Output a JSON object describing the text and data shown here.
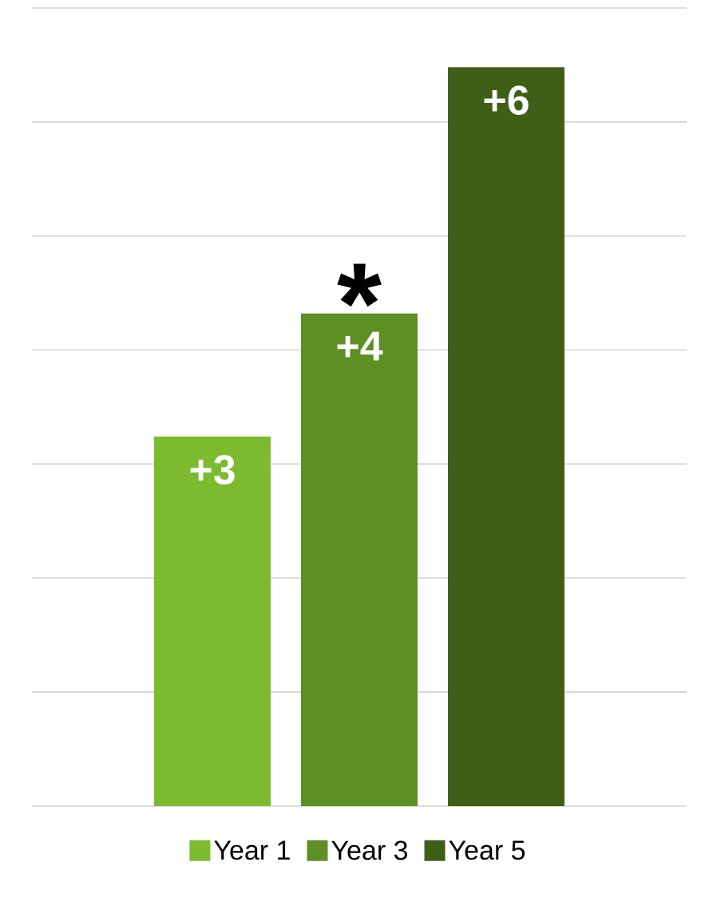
{
  "chart_data": {
    "type": "bar",
    "categories": [
      null
    ],
    "series": [
      {
        "name": "Year 1",
        "color": "#7cbb2f",
        "values": [
          3
        ],
        "value_labels": [
          "+3"
        ]
      },
      {
        "name": "Year 3",
        "color": "#5e8f25",
        "values": [
          4
        ],
        "value_labels": [
          "+4"
        ]
      },
      {
        "name": "Year 5",
        "color": "#3f5f17",
        "values": [
          6
        ],
        "value_labels": [
          "+6"
        ]
      }
    ],
    "annotations": [
      "*"
    ],
    "grid": "y",
    "legend": "bottom"
  }
}
